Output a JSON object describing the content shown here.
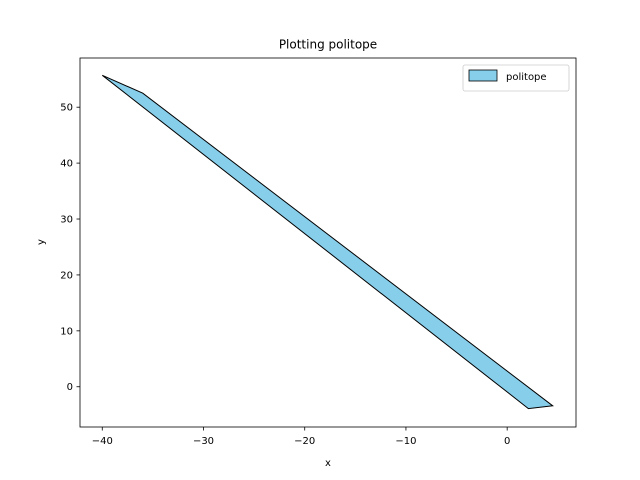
{
  "chart_data": {
    "type": "area",
    "title": "Plotting politope",
    "xlabel": "x",
    "ylabel": "y",
    "xlim": [
      -42.2,
      6.8
    ],
    "ylim": [
      -7.2,
      58.8
    ],
    "xticks": [
      -40,
      -30,
      -20,
      -10,
      0
    ],
    "yticks": [
      0,
      10,
      20,
      30,
      40,
      50
    ],
    "xtick_labels": [
      "−40",
      "−30",
      "−20",
      "−10",
      "0"
    ],
    "ytick_labels": [
      "0",
      "10",
      "20",
      "30",
      "40",
      "50"
    ],
    "grid": false,
    "legend": {
      "placement": "top-right",
      "entries": [
        "politope"
      ]
    },
    "series": [
      {
        "name": "politope",
        "fill": "#87ceeb",
        "edge": "#000000",
        "vertices": [
          {
            "x": -40.0,
            "y": 55.7
          },
          {
            "x": -36.0,
            "y": 52.5
          },
          {
            "x": 4.5,
            "y": -3.4
          },
          {
            "x": 2.1,
            "y": -3.9
          }
        ]
      }
    ]
  }
}
